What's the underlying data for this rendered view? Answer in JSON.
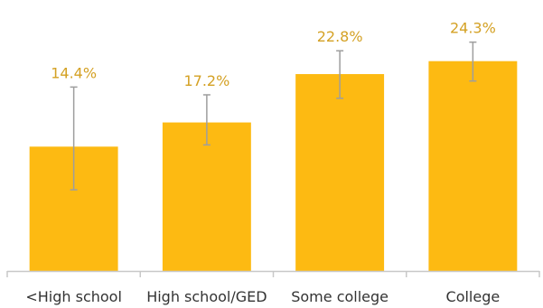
{
  "chart_data": {
    "type": "bar",
    "categories": [
      "<High school",
      "High school/GED",
      "Some college",
      "College"
    ],
    "values": [
      14.4,
      17.2,
      22.8,
      24.3
    ],
    "value_labels": [
      "14.4%",
      "17.2%",
      "22.8%",
      "24.3%"
    ],
    "error_bars": [
      {
        "low": 9.4,
        "high": 21.3
      },
      {
        "low": 14.6,
        "high": 20.4
      },
      {
        "low": 20.0,
        "high": 25.5
      },
      {
        "low": 22.0,
        "high": 26.5
      }
    ],
    "title": "",
    "xlabel": "",
    "ylabel": "",
    "ylim": [
      0,
      28
    ],
    "grid": false,
    "legend": "none",
    "colors": {
      "bar": "#FDBA12",
      "label": "#D4A124",
      "error_bar": "#9E9E9E",
      "axis": "#C8C8C8",
      "tick_label": "#333333"
    }
  }
}
